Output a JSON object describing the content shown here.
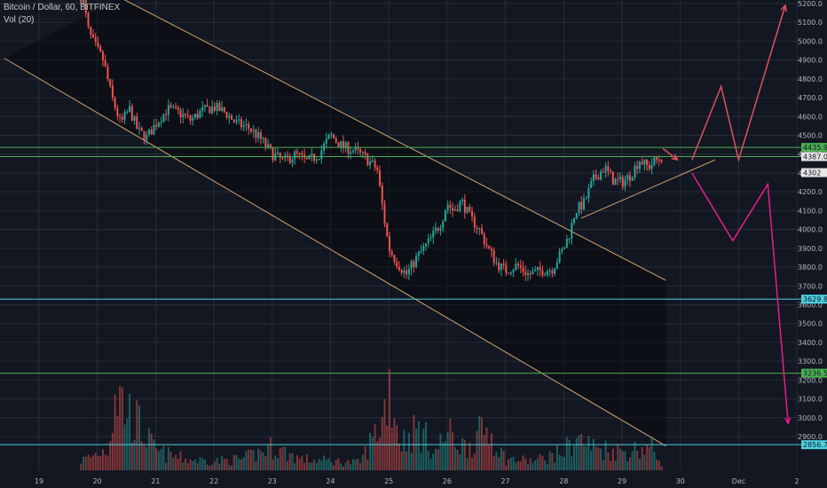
{
  "header": {
    "symbol": "Bitcoin / Dollar, 60, BITFINEX",
    "indicator": "Vol (20)"
  },
  "colors": {
    "background": "#131722",
    "grid": "#262b38",
    "up": "#26a69a",
    "down": "#ef5350",
    "channel_line": "#d4a373",
    "green_level": "#4caf50",
    "cyan_level": "#4dd0e1",
    "arrow_up": "#e04f5f",
    "arrow_down": "#e91e8c"
  },
  "chart_data": {
    "type": "candlestick",
    "y_axis": {
      "ticks": [
        "5200.0",
        "5100.0",
        "5000.0",
        "4900.0",
        "4800.0",
        "4700.0",
        "4600.0",
        "4500.0",
        "4400.0",
        "4300.0",
        "4200.0",
        "4100.0",
        "4000.0",
        "3900.0",
        "3800.0",
        "3700.0",
        "3600.0",
        "3500.0",
        "3400.0",
        "3300.0",
        "3200.0",
        "3100.0",
        "3000.0",
        "2900.0"
      ],
      "ylim": [
        2850,
        5220
      ],
      "side": "right"
    },
    "x_axis": {
      "ticks": [
        "19",
        "20",
        "21",
        "22",
        "23",
        "24",
        "25",
        "26",
        "27",
        "28",
        "29",
        "30",
        "Dec",
        "2"
      ]
    },
    "level_tags": [
      {
        "label": "4435.9",
        "value": 4435.9,
        "color": "#4caf50"
      },
      {
        "label": "4387.0",
        "value": 4387.0,
        "color": "#e6e6e6"
      },
      {
        "label": "4302",
        "value": 4302,
        "color": "#e6e6e6"
      },
      {
        "label": "3629.8",
        "value": 3629.8,
        "color": "#4dd0e1"
      },
      {
        "label": "3236.5",
        "value": 3236.5,
        "color": "#4caf50"
      },
      {
        "label": "2856.7",
        "value": 2856.7,
        "color": "#4dd0e1"
      }
    ],
    "horizontal_levels": [
      {
        "value": 4435.9,
        "color": "#4caf50"
      },
      {
        "value": 4387.0,
        "color": "#4caf50"
      },
      {
        "value": 3629.8,
        "color": "#4dd0e1"
      },
      {
        "value": 3236.5,
        "color": "#4caf50"
      },
      {
        "value": 2856.7,
        "color": "#4dd0e1"
      }
    ],
    "price_path": [
      {
        "x": 19.75,
        "y": 5230
      },
      {
        "x": 19.85,
        "y": 5050
      },
      {
        "x": 19.95,
        "y": 4980
      },
      {
        "x": 20.1,
        "y": 4900
      },
      {
        "x": 20.25,
        "y": 4700
      },
      {
        "x": 20.4,
        "y": 4560
      },
      {
        "x": 20.55,
        "y": 4640
      },
      {
        "x": 20.7,
        "y": 4520
      },
      {
        "x": 20.85,
        "y": 4490
      },
      {
        "x": 21.0,
        "y": 4560
      },
      {
        "x": 21.2,
        "y": 4640
      },
      {
        "x": 21.4,
        "y": 4620
      },
      {
        "x": 21.6,
        "y": 4580
      },
      {
        "x": 21.8,
        "y": 4630
      },
      {
        "x": 22.0,
        "y": 4650
      },
      {
        "x": 22.2,
        "y": 4620
      },
      {
        "x": 22.4,
        "y": 4560
      },
      {
        "x": 22.6,
        "y": 4540
      },
      {
        "x": 22.8,
        "y": 4480
      },
      {
        "x": 23.0,
        "y": 4400
      },
      {
        "x": 23.2,
        "y": 4360
      },
      {
        "x": 23.4,
        "y": 4400
      },
      {
        "x": 23.6,
        "y": 4360
      },
      {
        "x": 23.8,
        "y": 4400
      },
      {
        "x": 24.0,
        "y": 4500
      },
      {
        "x": 24.2,
        "y": 4440
      },
      {
        "x": 24.4,
        "y": 4420
      },
      {
        "x": 24.6,
        "y": 4380
      },
      {
        "x": 24.8,
        "y": 4320
      },
      {
        "x": 24.9,
        "y": 4100
      },
      {
        "x": 25.0,
        "y": 3900
      },
      {
        "x": 25.15,
        "y": 3820
      },
      {
        "x": 25.3,
        "y": 3760
      },
      {
        "x": 25.5,
        "y": 3860
      },
      {
        "x": 25.7,
        "y": 3940
      },
      {
        "x": 25.9,
        "y": 4040
      },
      {
        "x": 26.0,
        "y": 4140
      },
      {
        "x": 26.1,
        "y": 4100
      },
      {
        "x": 26.25,
        "y": 4150
      },
      {
        "x": 26.4,
        "y": 4060
      },
      {
        "x": 26.55,
        "y": 4000
      },
      {
        "x": 26.7,
        "y": 3900
      },
      {
        "x": 26.85,
        "y": 3820
      },
      {
        "x": 27.0,
        "y": 3780
      },
      {
        "x": 27.2,
        "y": 3810
      },
      {
        "x": 27.4,
        "y": 3760
      },
      {
        "x": 27.6,
        "y": 3780
      },
      {
        "x": 27.8,
        "y": 3790
      },
      {
        "x": 28.0,
        "y": 3900
      },
      {
        "x": 28.1,
        "y": 3980
      },
      {
        "x": 28.2,
        "y": 4100
      },
      {
        "x": 28.35,
        "y": 4140
      },
      {
        "x": 28.5,
        "y": 4260
      },
      {
        "x": 28.7,
        "y": 4330
      },
      {
        "x": 28.85,
        "y": 4260
      },
      {
        "x": 29.0,
        "y": 4250
      },
      {
        "x": 29.15,
        "y": 4290
      },
      {
        "x": 29.3,
        "y": 4370
      },
      {
        "x": 29.45,
        "y": 4330
      },
      {
        "x": 29.55,
        "y": 4360
      },
      {
        "x": 29.72,
        "y": 4390
      }
    ],
    "volume_profile": [
      {
        "x": 19.0,
        "v": 0.03
      },
      {
        "x": 19.5,
        "v": 0.05
      },
      {
        "x": 19.9,
        "v": 0.15
      },
      {
        "x": 20.2,
        "v": 0.25
      },
      {
        "x": 20.3,
        "v": 0.9
      },
      {
        "x": 20.5,
        "v": 0.65
      },
      {
        "x": 20.7,
        "v": 0.5
      },
      {
        "x": 21.0,
        "v": 0.2
      },
      {
        "x": 21.5,
        "v": 0.12
      },
      {
        "x": 22.0,
        "v": 0.1
      },
      {
        "x": 22.5,
        "v": 0.12
      },
      {
        "x": 23.0,
        "v": 0.25
      },
      {
        "x": 23.5,
        "v": 0.12
      },
      {
        "x": 24.0,
        "v": 0.1
      },
      {
        "x": 24.5,
        "v": 0.08
      },
      {
        "x": 24.9,
        "v": 0.55
      },
      {
        "x": 25.0,
        "v": 0.98
      },
      {
        "x": 25.2,
        "v": 0.3
      },
      {
        "x": 25.5,
        "v": 0.45
      },
      {
        "x": 25.8,
        "v": 0.2
      },
      {
        "x": 26.0,
        "v": 0.4
      },
      {
        "x": 26.3,
        "v": 0.25
      },
      {
        "x": 26.7,
        "v": 0.45
      },
      {
        "x": 27.0,
        "v": 0.12
      },
      {
        "x": 27.5,
        "v": 0.1
      },
      {
        "x": 28.0,
        "v": 0.2
      },
      {
        "x": 28.2,
        "v": 0.35
      },
      {
        "x": 28.5,
        "v": 0.25
      },
      {
        "x": 29.0,
        "v": 0.2
      },
      {
        "x": 29.5,
        "v": 0.25
      },
      {
        "x": 29.72,
        "v": 0.05
      }
    ],
    "channel": {
      "upper": [
        {
          "x": 20.4,
          "y": 5230
        },
        {
          "x": 29.75,
          "y": 3730
        }
      ],
      "lower": [
        {
          "x": 18.4,
          "y": 4910
        },
        {
          "x": 29.75,
          "y": 2850
        }
      ],
      "shade_end_x": 29.75
    },
    "trendline": [
      {
        "x": 28.3,
        "y": 4060
      },
      {
        "x": 30.6,
        "y": 4370
      }
    ],
    "projections": [
      {
        "color": "#e04f5f",
        "points": [
          {
            "x": 29.7,
            "y": 4430
          },
          {
            "x": 29.95,
            "y": 4370
          }
        ]
      },
      {
        "color": "#e04f5f",
        "points": [
          {
            "x": 30.2,
            "y": 4370
          },
          {
            "x": 30.7,
            "y": 4760
          },
          {
            "x": 31.0,
            "y": 4370
          },
          {
            "x": 31.8,
            "y": 5190
          }
        ]
      },
      {
        "color": "#e91e8c",
        "points": [
          {
            "x": 30.2,
            "y": 4300
          },
          {
            "x": 30.9,
            "y": 3940
          },
          {
            "x": 31.5,
            "y": 4240
          },
          {
            "x": 31.85,
            "y": 2970
          }
        ]
      }
    ]
  }
}
